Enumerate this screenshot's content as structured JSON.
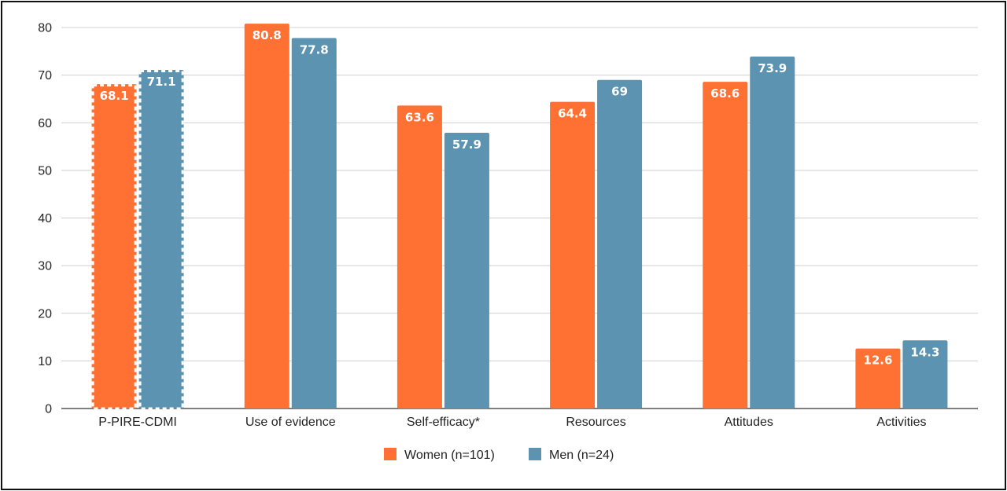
{
  "chart_data": {
    "type": "bar",
    "categories": [
      "P-PIRE-CDMI",
      "Use of evidence",
      "Self-efficacy*",
      "Resources",
      "Attitudes",
      "Activities"
    ],
    "series": [
      {
        "name": "Women (n=101)",
        "color": "#FF7033",
        "values": [
          68.1,
          80.8,
          63.6,
          64.4,
          68.6,
          12.6
        ]
      },
      {
        "name": "Men (n=24)",
        "color": "#5B93B0",
        "values": [
          71.1,
          77.8,
          57.9,
          69,
          73.9,
          14.3
        ]
      }
    ],
    "dashed_categories": [
      "P-PIRE-CDMI"
    ],
    "ylim": [
      0,
      80
    ],
    "yticks": [
      0,
      10,
      20,
      30,
      40,
      50,
      60,
      70,
      80
    ],
    "grid": true,
    "legend_position": "bottom-center",
    "data_labels": true
  }
}
